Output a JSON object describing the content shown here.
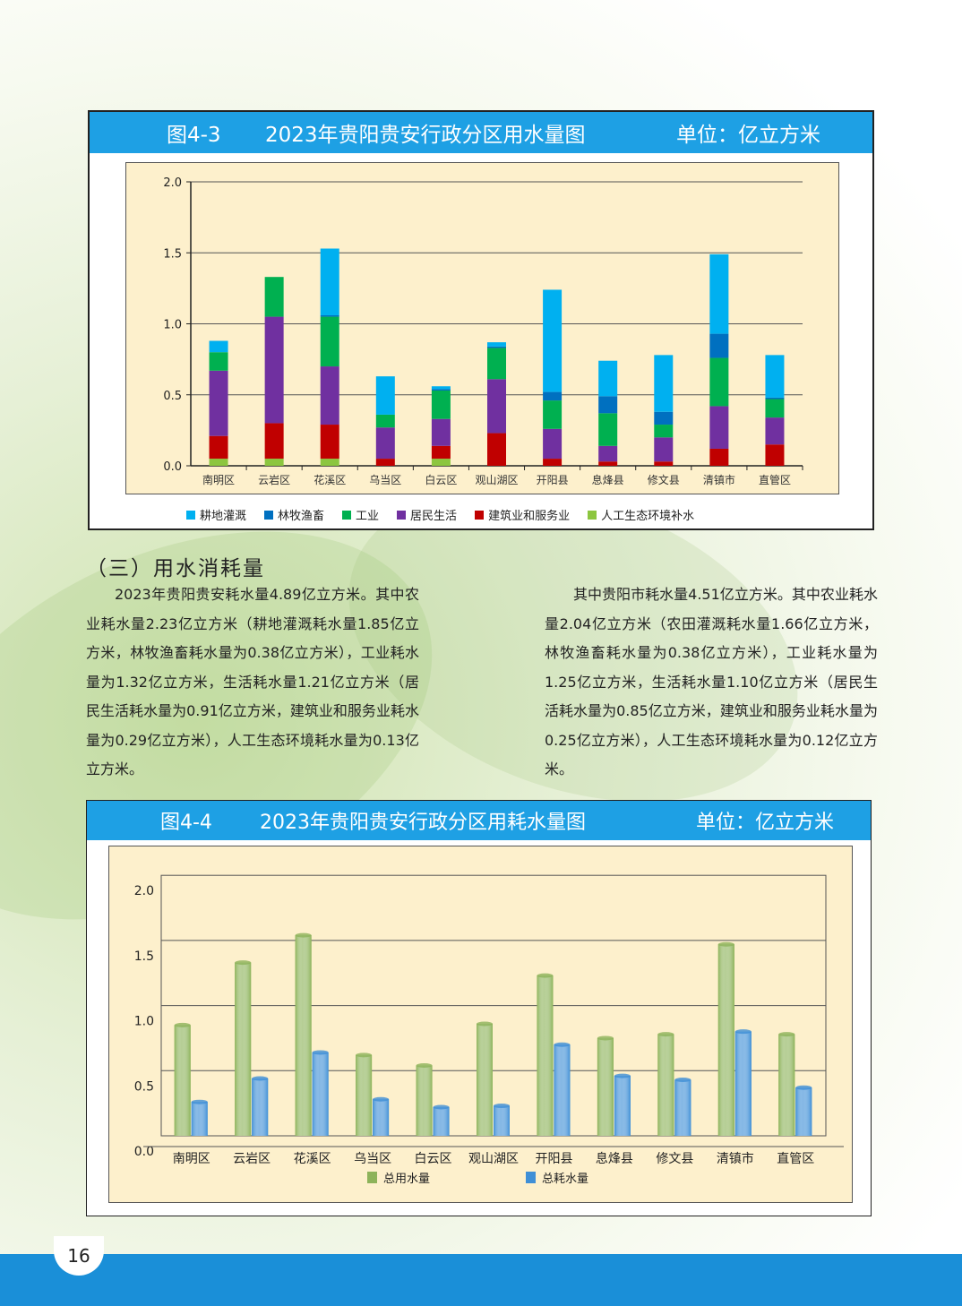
{
  "chart_43": {
    "title_fig": "图4-3",
    "title_text": "2023年贵阳贵安行政分区用水量图",
    "unit": "单位：亿立方米"
  },
  "chart_44": {
    "title_fig": "图4-4",
    "title_text": "2023年贵阳贵安行政分区用耗水量图",
    "unit": "单位：亿立方米"
  },
  "section": {
    "heading": "（三）用水消耗量",
    "para_left": "2023年贵阳贵安耗水量4.89亿立方米。其中农业耗水量2.23亿立方米（耕地灌溉耗水量1.85亿立方米，林牧渔畜耗水量为0.38亿立方米），工业耗水量为1.32亿立方米，生活耗水量1.21亿立方米（居民生活耗水量为0.91亿立方米，建筑业和服务业耗水量为0.29亿立方米），人工生态环境耗水量为0.13亿立方米。",
    "para_right": "其中贵阳市耗水量4.51亿立方米。其中农业耗水量2.04亿立方米（农田灌溉耗水量1.66亿立方米，林牧渔畜耗水量为0.38亿立方米），工业耗水量为1.25亿立方米，生活耗水量1.10亿立方米（居民生活耗水量为0.85亿立方米，建筑业和服务业耗水量为0.25亿立方米），人工生态环境耗水量为0.12亿立方米。"
  },
  "page_number": "16",
  "chart_data": [
    {
      "type": "bar",
      "stacked": true,
      "title": "2023年贵阳贵安行政分区用水量图",
      "ylabel": "亿立方米",
      "ylim": [
        0,
        2.0
      ],
      "yticks": [
        "0.0",
        "0.5",
        "1.0",
        "1.5",
        "2.0"
      ],
      "grid": true,
      "legend": "bottom",
      "categories": [
        "南明区",
        "云岩区",
        "花溪区",
        "乌当区",
        "白云区",
        "观山湖区",
        "开阳县",
        "息烽县",
        "修文县",
        "清镇市",
        "直管区"
      ],
      "series": [
        {
          "name": "人工生态环境补水",
          "color": "#8cc63f",
          "values": [
            0.05,
            0.05,
            0.05,
            0,
            0.05,
            0,
            0,
            0,
            0,
            0,
            0
          ]
        },
        {
          "name": "建筑业和服务业",
          "color": "#c00000",
          "values": [
            0.16,
            0.25,
            0.24,
            0.05,
            0.09,
            0.23,
            0.05,
            0.03,
            0.03,
            0.12,
            0.15
          ]
        },
        {
          "name": "居民生活",
          "color": "#7030a0",
          "values": [
            0.46,
            0.75,
            0.41,
            0.22,
            0.19,
            0.38,
            0.21,
            0.11,
            0.17,
            0.3,
            0.19
          ]
        },
        {
          "name": "工业",
          "color": "#00b050",
          "values": [
            0.13,
            0.28,
            0.35,
            0.09,
            0.2,
            0.22,
            0.2,
            0.23,
            0.09,
            0.34,
            0.13
          ]
        },
        {
          "name": "林牧渔畜",
          "color": "#0070c0",
          "values": [
            0,
            0,
            0.01,
            0,
            0.01,
            0.01,
            0.06,
            0.12,
            0.09,
            0.17,
            0.01
          ]
        },
        {
          "name": "耕地灌溉",
          "color": "#00b0f0",
          "values": [
            0.08,
            0,
            0.47,
            0.27,
            0.02,
            0.03,
            0.72,
            0.25,
            0.4,
            0.56,
            0.3
          ]
        }
      ],
      "legend_order": [
        "耕地灌溉",
        "林牧渔畜",
        "工业",
        "居民生活",
        "建筑业和服务业",
        "人工生态环境补水"
      ]
    },
    {
      "type": "bar",
      "stacked": false,
      "title": "2023年贵阳贵安行政分区用耗水量图",
      "ylabel": "亿立方米",
      "ylim": [
        0,
        2.0
      ],
      "yticks": [
        "0.0",
        "0.5",
        "1.0",
        "1.5",
        "2.0"
      ],
      "grid": true,
      "legend": "bottom",
      "categories": [
        "南明区",
        "云岩区",
        "花溪区",
        "乌当区",
        "白云区",
        "观山湖区",
        "开阳县",
        "息烽县",
        "修文县",
        "清镇市",
        "直管区"
      ],
      "series": [
        {
          "name": "总用水量",
          "color": "#8db35a",
          "values": [
            0.85,
            1.33,
            1.54,
            0.62,
            0.54,
            0.86,
            1.23,
            0.75,
            0.78,
            1.47,
            0.78
          ]
        },
        {
          "name": "总耗水量",
          "color": "#3f8fd6",
          "values": [
            0.26,
            0.44,
            0.64,
            0.28,
            0.22,
            0.23,
            0.7,
            0.46,
            0.43,
            0.8,
            0.37
          ]
        }
      ]
    }
  ]
}
